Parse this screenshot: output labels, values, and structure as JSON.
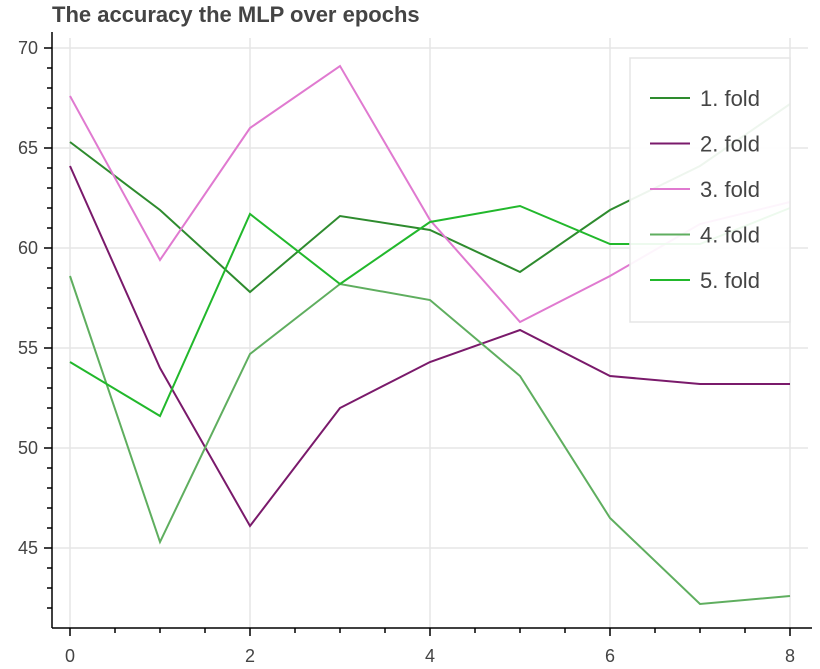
{
  "chart_data": {
    "type": "line",
    "title": "The accuracy the MLP over epochs",
    "xlabel": "",
    "ylabel": "",
    "x": [
      0,
      1,
      2,
      3,
      4,
      5,
      6,
      7,
      8
    ],
    "xlim": [
      -0.2,
      8.2
    ],
    "ylim": [
      41,
      70.5
    ],
    "xticks": [
      0,
      2,
      4,
      6,
      8
    ],
    "yticks": [
      45,
      50,
      55,
      60,
      65,
      70
    ],
    "grid": true,
    "legend_position": "top-right",
    "series": [
      {
        "name": "1. fold",
        "color": "#2e8b2e",
        "values": [
          65.3,
          61.9,
          57.8,
          61.6,
          60.9,
          58.8,
          61.9,
          64.1,
          67.2
        ]
      },
      {
        "name": "2. fold",
        "color": "#7a1a6b",
        "values": [
          64.1,
          54.0,
          46.1,
          52.0,
          54.3,
          55.9,
          53.6,
          53.2,
          53.2
        ]
      },
      {
        "name": "3. fold",
        "color": "#e07ad0",
        "values": [
          67.6,
          59.4,
          66.0,
          69.1,
          61.4,
          56.3,
          58.6,
          61.2,
          62.3
        ]
      },
      {
        "name": "4. fold",
        "color": "#5fae5f",
        "values": [
          58.6,
          45.3,
          54.7,
          58.2,
          57.4,
          53.6,
          46.5,
          42.2,
          42.6
        ]
      },
      {
        "name": "5. fold",
        "color": "#22b82c",
        "values": [
          54.3,
          51.6,
          61.7,
          58.2,
          61.3,
          62.1,
          60.2,
          60.2,
          62.0
        ]
      }
    ]
  }
}
